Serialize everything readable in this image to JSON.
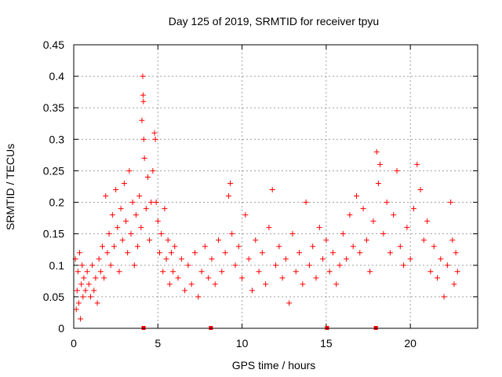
{
  "chart_data": {
    "type": "scatter",
    "title": "Day 125 of 2019, SRMTID for receiver tpyu",
    "xlabel": "GPS time / hours",
    "ylabel": "SRMTID / TECUs",
    "xlim": [
      0,
      24
    ],
    "ylim": [
      0,
      0.45
    ],
    "xticks": [
      0,
      5,
      10,
      15,
      20
    ],
    "xtick_labels": [
      "0",
      "5",
      "10",
      "15",
      "20"
    ],
    "yticks": [
      0,
      0.05,
      0.1,
      0.15,
      0.2,
      0.25,
      0.3,
      0.35,
      0.4,
      0.45
    ],
    "ytick_labels": [
      "0",
      "0.05",
      "0.1",
      "0.15",
      "0.2",
      "0.25",
      "0.3",
      "0.35",
      "0.4",
      "0.45"
    ],
    "grid": true,
    "marker": "plus",
    "color": "#ff0000",
    "data_gap_markers_x": [
      4.15,
      8.15,
      15.05,
      17.95
    ],
    "series": [
      {
        "name": "SRMTID",
        "points": [
          [
            0.1,
            0.11
          ],
          [
            0.15,
            0.03
          ],
          [
            0.2,
            0.06
          ],
          [
            0.25,
            0.09
          ],
          [
            0.3,
            0.04
          ],
          [
            0.35,
            0.12
          ],
          [
            0.4,
            0.015
          ],
          [
            0.45,
            0.07
          ],
          [
            0.5,
            0.1
          ],
          [
            0.55,
            0.05
          ],
          [
            0.6,
            0.08
          ],
          [
            0.7,
            0.06
          ],
          [
            0.8,
            0.09
          ],
          [
            0.9,
            0.07
          ],
          [
            1.0,
            0.05
          ],
          [
            1.1,
            0.1
          ],
          [
            1.2,
            0.06
          ],
          [
            1.3,
            0.08
          ],
          [
            1.4,
            0.04
          ],
          [
            1.5,
            0.11
          ],
          [
            1.6,
            0.09
          ],
          [
            1.7,
            0.13
          ],
          [
            1.8,
            0.08
          ],
          [
            1.9,
            0.21
          ],
          [
            2.0,
            0.12
          ],
          [
            2.1,
            0.15
          ],
          [
            2.2,
            0.1
          ],
          [
            2.3,
            0.18
          ],
          [
            2.4,
            0.13
          ],
          [
            2.5,
            0.22
          ],
          [
            2.6,
            0.16
          ],
          [
            2.7,
            0.09
          ],
          [
            2.8,
            0.19
          ],
          [
            2.9,
            0.14
          ],
          [
            3.0,
            0.23
          ],
          [
            3.1,
            0.17
          ],
          [
            3.2,
            0.12
          ],
          [
            3.3,
            0.25
          ],
          [
            3.4,
            0.15
          ],
          [
            3.5,
            0.2
          ],
          [
            3.6,
            0.1
          ],
          [
            3.7,
            0.18
          ],
          [
            3.8,
            0.13
          ],
          [
            3.9,
            0.21
          ],
          [
            4.0,
            0.16
          ],
          [
            4.05,
            0.33
          ],
          [
            4.1,
            0.4
          ],
          [
            4.12,
            0.37
          ],
          [
            4.14,
            0.36
          ],
          [
            4.16,
            0.3
          ],
          [
            4.2,
            0.27
          ],
          [
            4.3,
            0.19
          ],
          [
            4.4,
            0.24
          ],
          [
            4.5,
            0.14
          ],
          [
            4.6,
            0.2
          ],
          [
            4.7,
            0.25
          ],
          [
            4.8,
            0.31
          ],
          [
            4.85,
            0.3
          ],
          [
            4.9,
            0.2
          ],
          [
            5.0,
            0.17
          ],
          [
            5.1,
            0.12
          ],
          [
            5.2,
            0.15
          ],
          [
            5.3,
            0.09
          ],
          [
            5.4,
            0.19
          ],
          [
            5.5,
            0.11
          ],
          [
            5.6,
            0.14
          ],
          [
            5.7,
            0.07
          ],
          [
            5.8,
            0.12
          ],
          [
            5.9,
            0.09
          ],
          [
            6.0,
            0.13
          ],
          [
            6.2,
            0.08
          ],
          [
            6.4,
            0.11
          ],
          [
            6.6,
            0.06
          ],
          [
            6.8,
            0.1
          ],
          [
            7.0,
            0.07
          ],
          [
            7.2,
            0.12
          ],
          [
            7.4,
            0.05
          ],
          [
            7.6,
            0.09
          ],
          [
            7.8,
            0.13
          ],
          [
            8.0,
            0.08
          ],
          [
            8.2,
            0.11
          ],
          [
            8.4,
            0.07
          ],
          [
            8.6,
            0.14
          ],
          [
            8.8,
            0.09
          ],
          [
            9.0,
            0.12
          ],
          [
            9.2,
            0.21
          ],
          [
            9.3,
            0.23
          ],
          [
            9.4,
            0.15
          ],
          [
            9.6,
            0.1
          ],
          [
            9.8,
            0.13
          ],
          [
            10.0,
            0.08
          ],
          [
            10.2,
            0.18
          ],
          [
            10.4,
            0.11
          ],
          [
            10.6,
            0.06
          ],
          [
            10.8,
            0.14
          ],
          [
            11.0,
            0.09
          ],
          [
            11.2,
            0.12
          ],
          [
            11.4,
            0.07
          ],
          [
            11.6,
            0.16
          ],
          [
            11.8,
            0.22
          ],
          [
            12.0,
            0.1
          ],
          [
            12.2,
            0.13
          ],
          [
            12.4,
            0.08
          ],
          [
            12.6,
            0.11
          ],
          [
            12.8,
            0.04
          ],
          [
            13.0,
            0.15
          ],
          [
            13.2,
            0.09
          ],
          [
            13.4,
            0.12
          ],
          [
            13.6,
            0.07
          ],
          [
            13.8,
            0.2
          ],
          [
            14.0,
            0.1
          ],
          [
            14.2,
            0.13
          ],
          [
            14.4,
            0.08
          ],
          [
            14.6,
            0.16
          ],
          [
            14.8,
            0.11
          ],
          [
            15.0,
            0.14
          ],
          [
            15.2,
            0.09
          ],
          [
            15.4,
            0.12
          ],
          [
            15.6,
            0.07
          ],
          [
            15.8,
            0.1
          ],
          [
            16.0,
            0.15
          ],
          [
            16.2,
            0.11
          ],
          [
            16.4,
            0.18
          ],
          [
            16.6,
            0.13
          ],
          [
            16.8,
            0.21
          ],
          [
            17.0,
            0.12
          ],
          [
            17.2,
            0.19
          ],
          [
            17.4,
            0.14
          ],
          [
            17.6,
            0.09
          ],
          [
            17.8,
            0.17
          ],
          [
            18.0,
            0.28
          ],
          [
            18.1,
            0.23
          ],
          [
            18.2,
            0.26
          ],
          [
            18.4,
            0.15
          ],
          [
            18.6,
            0.2
          ],
          [
            18.8,
            0.12
          ],
          [
            19.0,
            0.18
          ],
          [
            19.2,
            0.25
          ],
          [
            19.4,
            0.13
          ],
          [
            19.6,
            0.1
          ],
          [
            19.8,
            0.16
          ],
          [
            20.0,
            0.11
          ],
          [
            20.2,
            0.19
          ],
          [
            20.4,
            0.26
          ],
          [
            20.6,
            0.22
          ],
          [
            20.8,
            0.14
          ],
          [
            21.0,
            0.17
          ],
          [
            21.2,
            0.09
          ],
          [
            21.4,
            0.13
          ],
          [
            21.6,
            0.08
          ],
          [
            21.8,
            0.11
          ],
          [
            22.0,
            0.05
          ],
          [
            22.2,
            0.1
          ],
          [
            22.4,
            0.2
          ],
          [
            22.5,
            0.14
          ],
          [
            22.6,
            0.07
          ],
          [
            22.7,
            0.12
          ],
          [
            22.8,
            0.09
          ]
        ]
      }
    ]
  }
}
